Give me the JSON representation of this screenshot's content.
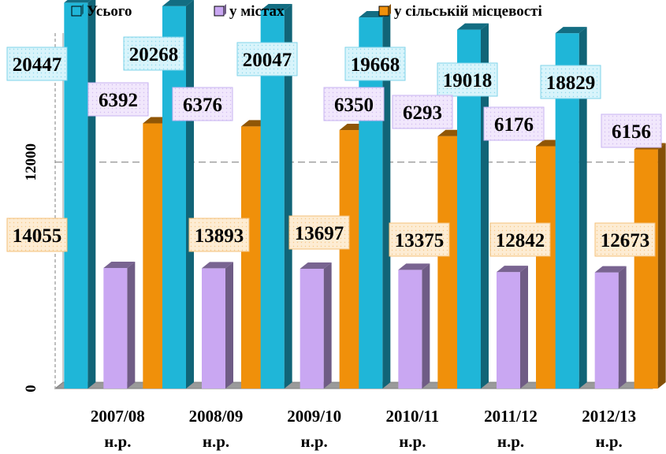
{
  "chart_data": {
    "type": "bar",
    "categories": [
      [
        "2007/08",
        "н.р."
      ],
      [
        "2008/09",
        "н.р."
      ],
      [
        "2009/10",
        "н.р."
      ],
      [
        "2010/11",
        "н.р."
      ],
      [
        "2011/12",
        "н.р."
      ],
      [
        "2012/13",
        "н.р."
      ]
    ],
    "series": [
      {
        "name": "Усього",
        "color": "#1fb6d8",
        "values": [
          20447,
          20268,
          20047,
          19668,
          19018,
          18829
        ]
      },
      {
        "name": "у містах",
        "color": "#c9a7f2",
        "values": [
          6392,
          6376,
          6350,
          6293,
          6176,
          6156
        ]
      },
      {
        "name": "у сільській місцевості",
        "color": "#f0900a",
        "values": [
          14055,
          13893,
          13697,
          13375,
          12842,
          12673
        ]
      }
    ],
    "yticks": [
      0,
      12000
    ],
    "ylim": [
      0,
      18000
    ],
    "grid": true,
    "legend": "top",
    "three_d": true
  }
}
